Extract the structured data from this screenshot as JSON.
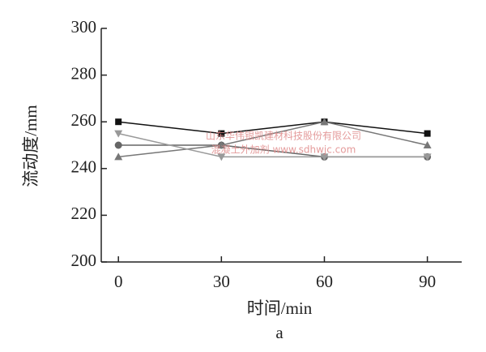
{
  "chart_data": {
    "type": "line",
    "x_label": "时间/min",
    "y_label": "流动度/mm",
    "subtitle": "a",
    "watermark": [
      "山东华伟银凯建材科技股份有限公司",
      "混凝土外加剂 www.sdhwjc.com"
    ],
    "x": [
      0,
      30,
      60,
      90
    ],
    "series": [
      {
        "color": "#111111",
        "marker": "square",
        "values": [
          260,
          255,
          260,
          255
        ]
      },
      {
        "color": "#666666",
        "marker": "circle",
        "values": [
          250,
          250,
          245,
          245
        ]
      },
      {
        "color": "#777777",
        "marker": "triangle-up",
        "values": [
          245,
          250,
          260,
          250
        ]
      },
      {
        "color": "#999999",
        "marker": "triangle-down",
        "values": [
          255,
          245,
          245,
          245
        ]
      }
    ],
    "xlim": [
      -5,
      100
    ],
    "xticks": [
      0,
      30,
      60,
      90
    ],
    "ylim": [
      200,
      300
    ],
    "yticks": [
      200,
      220,
      240,
      260,
      280,
      300
    ]
  }
}
